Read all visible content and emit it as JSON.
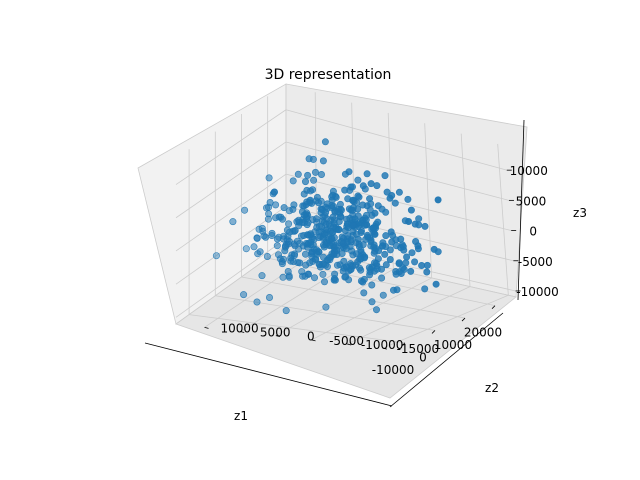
{
  "chart_data": {
    "type": "scatter",
    "title": "3D representation",
    "xlabel": "z1",
    "ylabel": "z2",
    "zlabel": "z3",
    "xlim": [
      -15000,
      27000
    ],
    "ylim": [
      -16000,
      14000
    ],
    "zlim": [
      -11000,
      14000
    ],
    "x_ticks": [
      "-10000",
      "0",
      "10000",
      "20000"
    ],
    "y_ticks": [
      "-15000",
      "-10000",
      "-5000",
      "0",
      "5000",
      "10000"
    ],
    "z_ticks": [
      "-10000",
      "-5000",
      "0",
      "5000",
      "10000"
    ],
    "x_tick_values": [
      -10000,
      0,
      10000,
      20000
    ],
    "y_tick_values": [
      -15000,
      -10000,
      -5000,
      0,
      5000,
      10000
    ],
    "z_tick_values": [
      -10000,
      -5000,
      0,
      5000,
      10000
    ],
    "grid": true,
    "marker_color": "#1f77b4",
    "pane_color": "#f2f2f2",
    "grid_color": "#cccccc",
    "num_points": 500,
    "series": [
      {
        "distribution": "approximately Gaussian cloud",
        "x_mean": 4000,
        "x_std": 6500,
        "y_mean": -1000,
        "y_std": 5000,
        "z_mean": 0,
        "z_std": 4000
      }
    ]
  }
}
